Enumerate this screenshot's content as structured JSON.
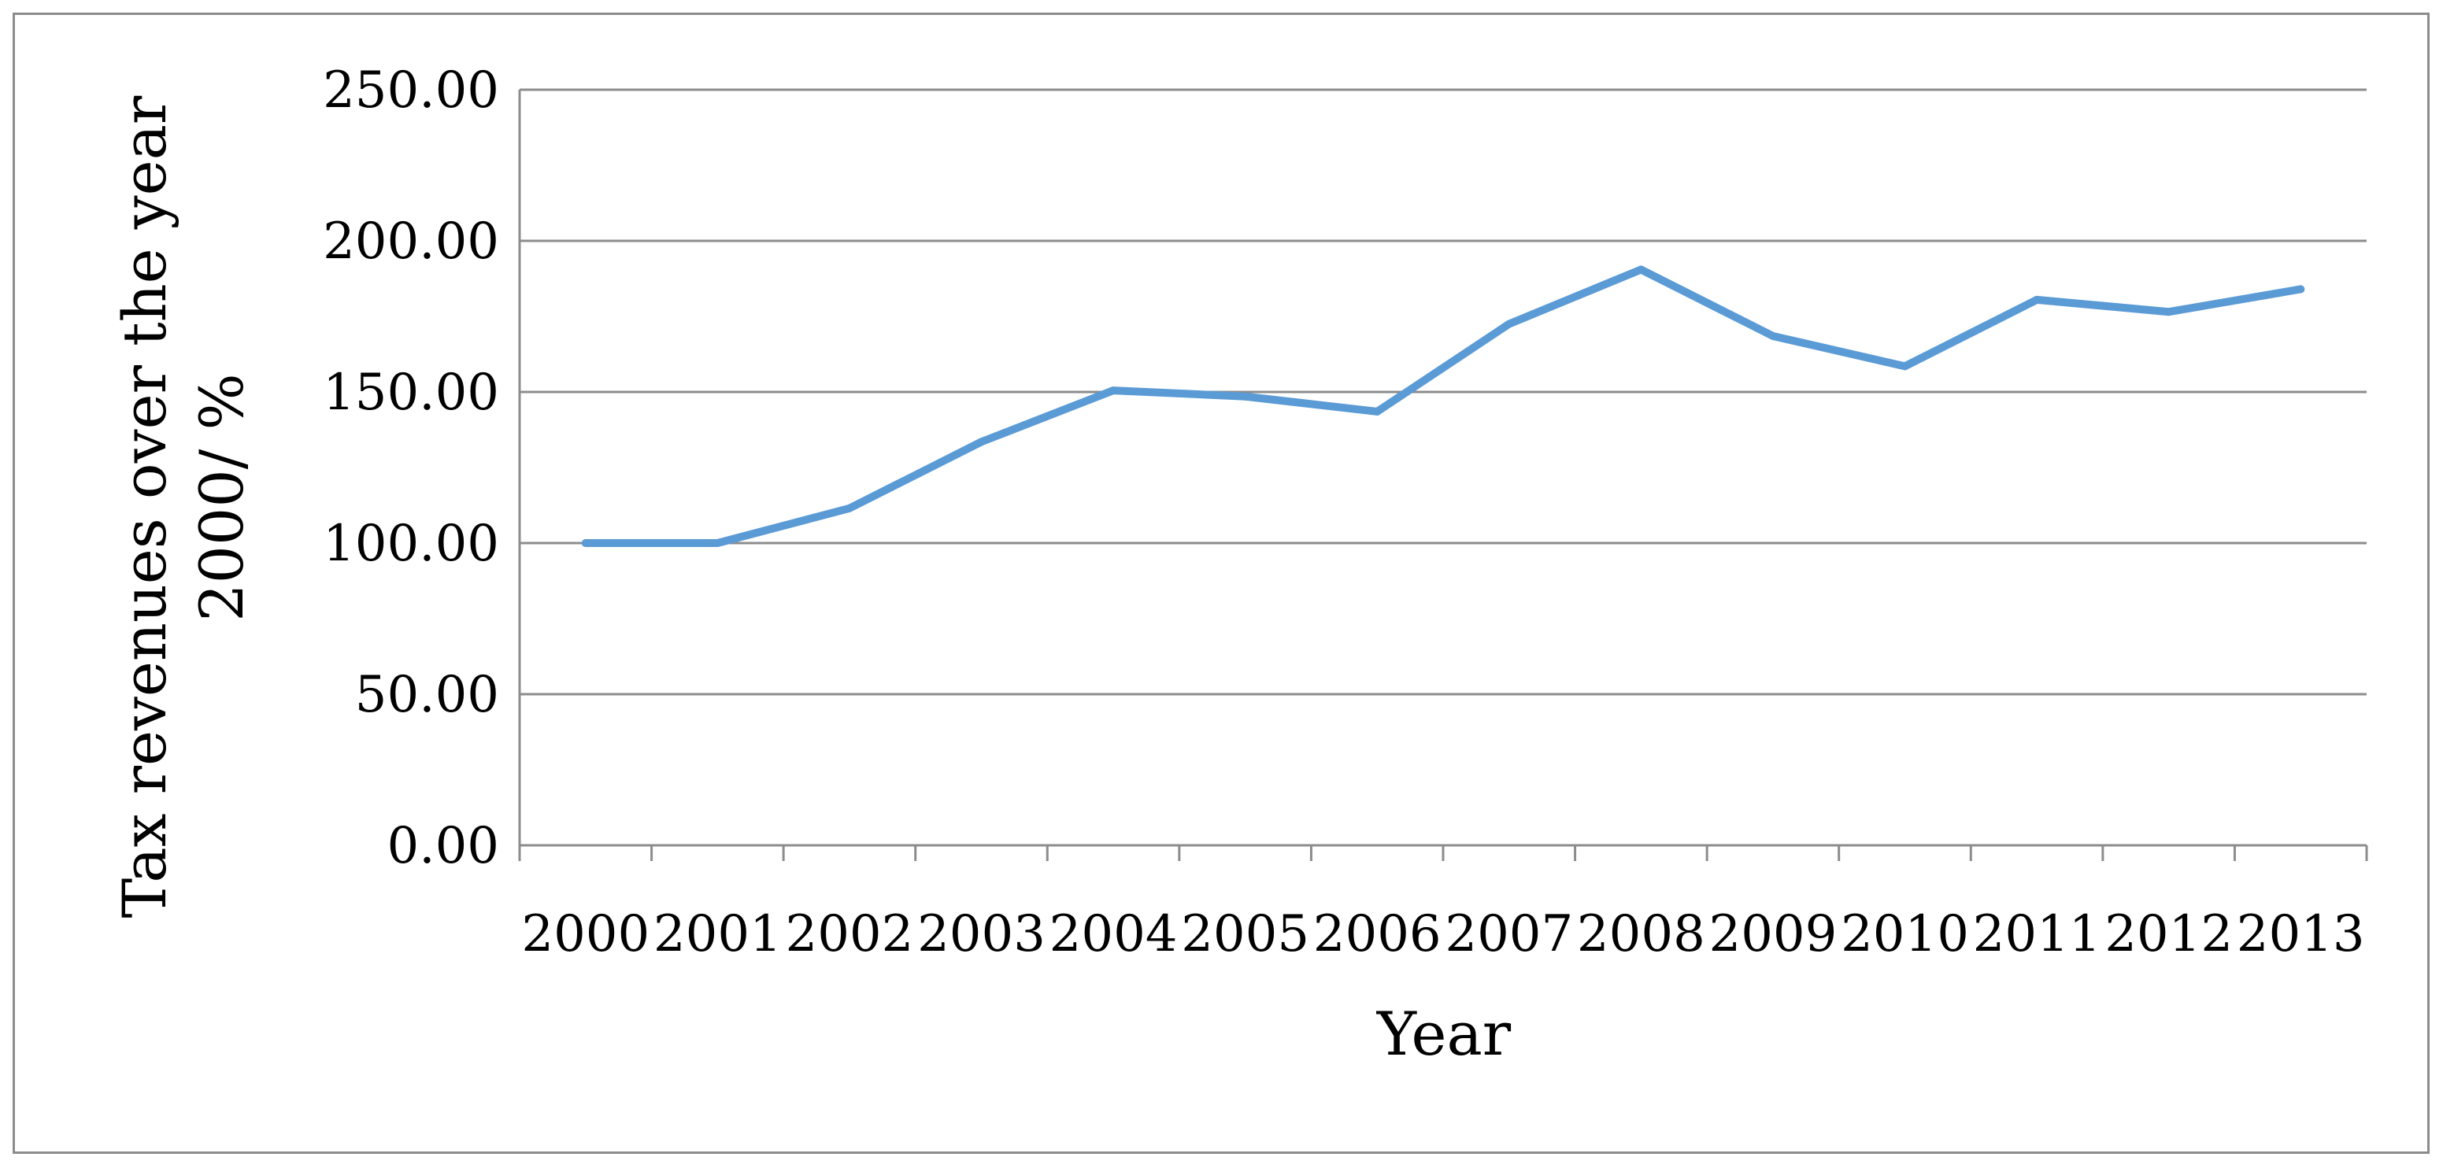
{
  "chart_data": {
    "type": "line",
    "title": "",
    "xlabel": "Year",
    "ylabel_lines": [
      "Tax revenues over the year",
      "2000/ %"
    ],
    "categories": [
      "2000",
      "2001",
      "2002",
      "2003",
      "2004",
      "2005",
      "2006",
      "2007",
      "2008",
      "2009",
      "2010",
      "2011",
      "2012",
      "2013"
    ],
    "series": [
      {
        "values": [
          100.0,
          100.0,
          111.5,
          133.5,
          150.5,
          148.5,
          143.5,
          172.5,
          190.5,
          168.5,
          158.5,
          180.5,
          176.5,
          184.0
        ]
      }
    ],
    "ylim": [
      0,
      250
    ],
    "y_ticks": [
      "0.00",
      "50.00",
      "100.00",
      "150.00",
      "200.00",
      "250.00"
    ],
    "grid": true,
    "legend": "none",
    "colors": {
      "line": "#5b9bd5",
      "grid": "#8c8c8c",
      "axis": "#8c8c8c",
      "frame": "#8c8c8c"
    }
  }
}
